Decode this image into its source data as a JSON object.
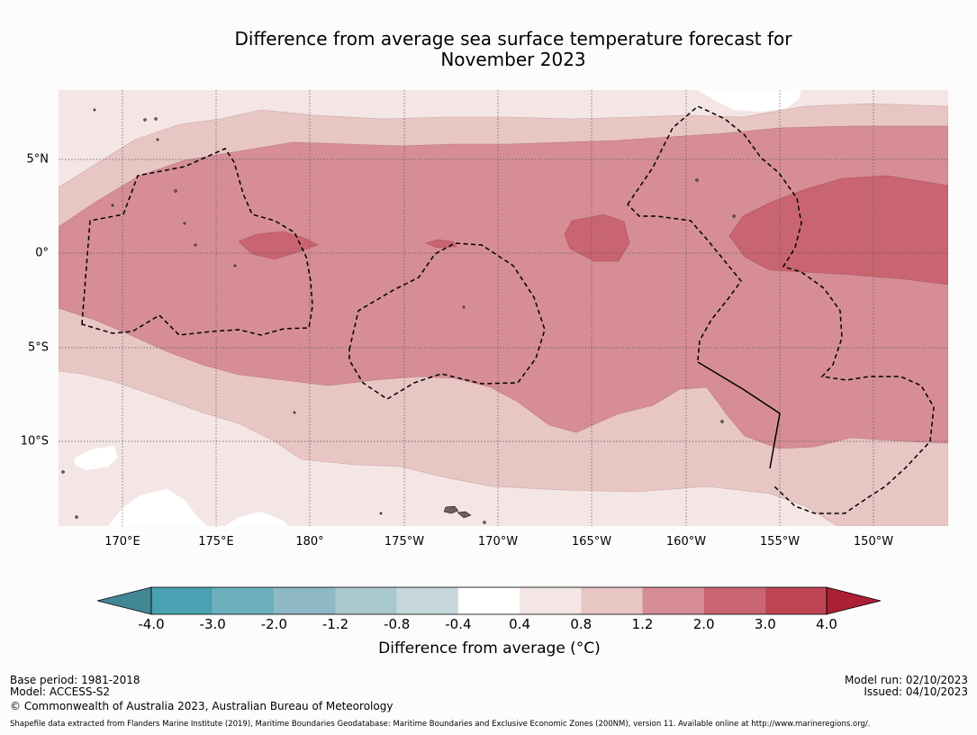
{
  "title_line1": "Difference from average sea surface temperature forecast for",
  "title_line2": "November 2023",
  "map": {
    "lon_labels": [
      "170°E",
      "175°E",
      "180°",
      "175°W",
      "170°W",
      "165°W",
      "160°W",
      "155°W",
      "150°W"
    ],
    "lat_labels": [
      "5°N",
      "0°",
      "5°S",
      "10°S"
    ],
    "colors": {
      "band_04_08": "#f4e6e5",
      "band_08_12": "#e7c6c4",
      "band_12_20": "#d68d96",
      "band_20_30": "#c96570",
      "land": "#6e6060"
    }
  },
  "colorbar": {
    "ticks": [
      "-4.0",
      "-3.0",
      "-2.0",
      "-1.2",
      "-0.8",
      "-0.4",
      "0.4",
      "0.8",
      "1.2",
      "2.0",
      "3.0",
      "4.0"
    ],
    "colors": [
      "#418894",
      "#4aa1b1",
      "#6bafbd",
      "#8db8c4",
      "#a9c8ce",
      "#c7d8dc",
      "#ffffff",
      "#f4e6e5",
      "#e7c6c4",
      "#d68d96",
      "#c96570",
      "#bf4555",
      "#ab1f37"
    ],
    "label": "Difference from average (°C)"
  },
  "footer": {
    "base_period": "Base period: 1981-2018",
    "model": "Model: ACCESS-S2",
    "copyright": "© Commonwealth of Australia 2023, Australian Bureau of Meteorology",
    "model_run": "Model run: 02/10/2023",
    "issued": "Issued: 04/10/2023",
    "shapefile": "Shapefile data extracted from Flanders Marine Institute (2019), Maritime Boundaries Geodatabase: Maritime Boundaries and Exclusive Economic Zones (200NM), version 11. Available online at http://www.marineregions.org/."
  }
}
